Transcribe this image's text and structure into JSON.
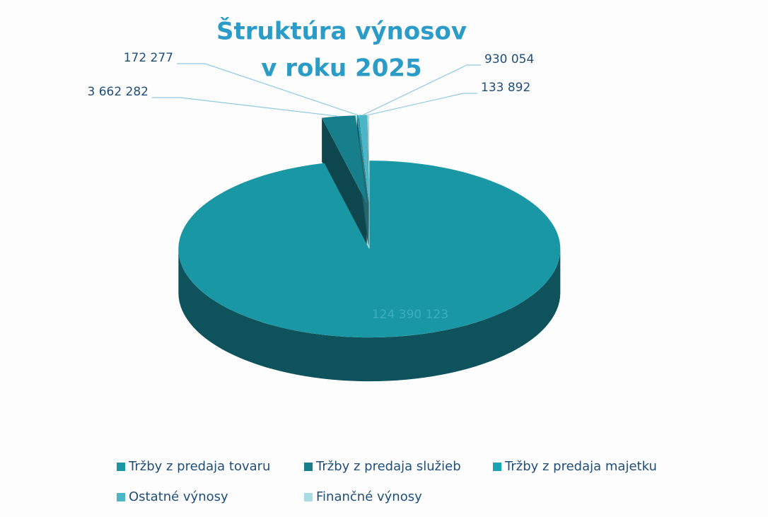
{
  "chart_data": {
    "type": "pie",
    "title": [
      "Štruktúra výnosov",
      "v roku 2025"
    ],
    "categories": [
      "Tržby z predaja tovaru",
      "Tržby z predaja služieb",
      "Tržby z predaja majetku",
      "Ostatné výnosy",
      "Finančné výnosy"
    ],
    "values": [
      124390123,
      3662282,
      172277,
      930054,
      133892
    ],
    "value_labels": [
      "124 390 123",
      "3 662 282",
      "172 277",
      "930 054",
      "133 892"
    ],
    "colors": [
      "#1a97a5",
      "#177f8b",
      "#1aa3b3",
      "#4db5c6",
      "#a9dbe5"
    ],
    "legend": "bottom"
  }
}
